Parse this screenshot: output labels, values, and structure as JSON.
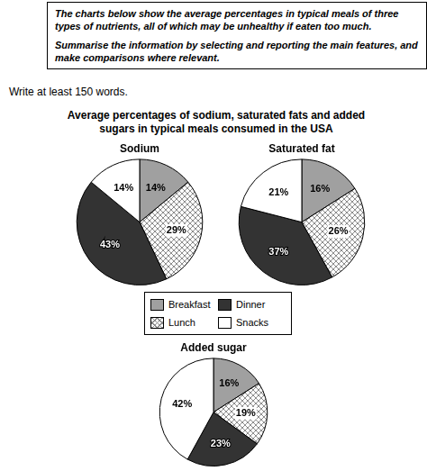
{
  "header": {
    "prompt": [
      "The charts below show the average percentages in typical meals of three types of nutrients, all of which may be unhealthy if eaten too much.",
      "Summarise the information by selecting and reporting the main features, and make comparisons where relevant."
    ],
    "instruction": "Write at least 150 words.",
    "title": "Average percentages of sodium, saturated fats and added sugars in typical meals consumed in the USA"
  },
  "chart_data": [
    {
      "type": "pie",
      "title": "Sodium",
      "categories": [
        "Breakfast",
        "Lunch",
        "Dinner",
        "Snacks"
      ],
      "values": [
        14,
        29,
        43,
        14
      ],
      "value_labels": [
        "14%",
        "29%",
        "43%",
        "14%"
      ],
      "colors": [
        "#a0a0a0",
        "#8c8c8c",
        "#333333",
        "#ffffff"
      ],
      "data_labels": true
    },
    {
      "type": "pie",
      "title": "Saturated fat",
      "categories": [
        "Breakfast",
        "Lunch",
        "Dinner",
        "Snacks"
      ],
      "values": [
        16,
        26,
        37,
        21
      ],
      "value_labels": [
        "16%",
        "26%",
        "37%",
        "21%"
      ],
      "colors": [
        "#a0a0a0",
        "#8c8c8c",
        "#333333",
        "#ffffff"
      ],
      "data_labels": true
    },
    {
      "type": "pie",
      "title": "Added sugar",
      "categories": [
        "Breakfast",
        "Lunch",
        "Dinner",
        "Snacks"
      ],
      "values": [
        16,
        19,
        23,
        42
      ],
      "value_labels": [
        "16%",
        "19%",
        "23%",
        "42%"
      ],
      "colors": [
        "#a0a0a0",
        "#8c8c8c",
        "#333333",
        "#ffffff"
      ],
      "data_labels": true
    }
  ]
}
